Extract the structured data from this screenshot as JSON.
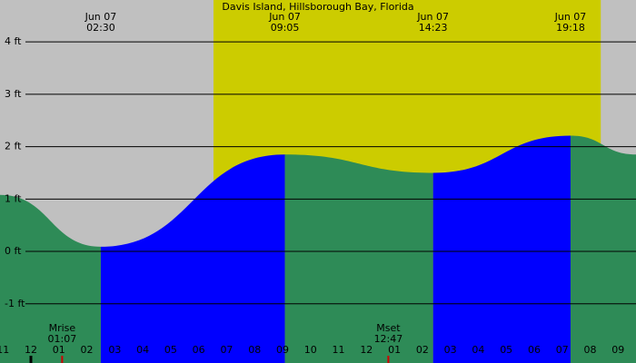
{
  "chart_data": {
    "type": "area",
    "title": "Davis Island, Hillsborough Bay, Florida",
    "x": [
      -1.105,
      2.5,
      9.083,
      14.383,
      19.3,
      21.64
    ],
    "values": [
      1.08,
      0.09,
      1.85,
      1.5,
      2.21,
      1.85
    ],
    "xlim": [
      -1.105,
      21.64
    ],
    "ylim": [
      -2.13,
      4.8
    ],
    "yticks": [
      {
        "value": 4,
        "label": "4 ft"
      },
      {
        "value": 3,
        "label": "3 ft"
      },
      {
        "value": 2,
        "label": "2 ft"
      },
      {
        "value": 1,
        "label": "1 ft"
      },
      {
        "value": 0,
        "label": "0 ft"
      },
      {
        "value": -1,
        "label": "-1 ft"
      }
    ],
    "xticks": [
      {
        "value": -1,
        "label": "11"
      },
      {
        "value": 0,
        "label": "12"
      },
      {
        "value": 1,
        "label": "01"
      },
      {
        "value": 2,
        "label": "02"
      },
      {
        "value": 3,
        "label": "03"
      },
      {
        "value": 4,
        "label": "04"
      },
      {
        "value": 5,
        "label": "05"
      },
      {
        "value": 6,
        "label": "06"
      },
      {
        "value": 7,
        "label": "07"
      },
      {
        "value": 8,
        "label": "08"
      },
      {
        "value": 9,
        "label": "09"
      },
      {
        "value": 10,
        "label": "10"
      },
      {
        "value": 11,
        "label": "11"
      },
      {
        "value": 12,
        "label": "12"
      },
      {
        "value": 13,
        "label": "01"
      },
      {
        "value": 14,
        "label": "02"
      },
      {
        "value": 15,
        "label": "03"
      },
      {
        "value": 16,
        "label": "04"
      },
      {
        "value": 17,
        "label": "05"
      },
      {
        "value": 18,
        "label": "06"
      },
      {
        "value": 19,
        "label": "07"
      },
      {
        "value": 20,
        "label": "08"
      },
      {
        "value": 21,
        "label": "09"
      }
    ],
    "events": [
      {
        "date": "Jun 07",
        "time": "02:30",
        "x": 2.5
      },
      {
        "date": "Jun 07",
        "time": "09:05",
        "x": 9.083
      },
      {
        "date": "Jun 07",
        "time": "14:23",
        "x": 14.383
      },
      {
        "date": "Jun 07",
        "time": "19:18",
        "x": 19.3
      }
    ],
    "moon": [
      {
        "label": "Mrise",
        "time": "01:07",
        "x": 1.117
      },
      {
        "label": "Mset",
        "time": "12:47",
        "x": 12.783
      }
    ],
    "daylight": [
      6.53,
      20.38
    ],
    "background_color": "#c0c0c0",
    "daylight_color": "#cccc00",
    "rising_color": "#0000ff",
    "falling_color": "#2e8b57",
    "grid": true
  }
}
